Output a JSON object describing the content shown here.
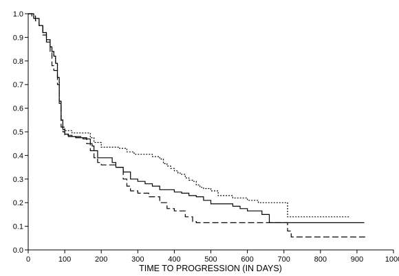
{
  "chart_data": {
    "type": "line",
    "title": "",
    "xlabel": "TIME TO PROGRESSION (IN DAYS)",
    "ylabel": "",
    "xlim": [
      0,
      1000
    ],
    "ylim": [
      0,
      1.0
    ],
    "x_ticks": [
      0,
      100,
      200,
      300,
      400,
      500,
      600,
      700,
      800,
      900,
      1000
    ],
    "y_ticks": [
      0.0,
      0.1,
      0.2,
      0.3,
      0.4,
      0.5,
      0.6,
      0.7,
      0.8,
      0.9,
      1.0
    ],
    "x_tick_labels": [
      "0",
      "100",
      "200",
      "300",
      "400",
      "500",
      "600",
      "700",
      "800",
      "900",
      "1000"
    ],
    "y_tick_labels": [
      "0.0",
      "0.1",
      "0.2",
      "0.3",
      "0.4",
      "0.5",
      "0.6",
      "0.7",
      "0.8",
      "0.9",
      "1.0"
    ],
    "grid": false,
    "legend": "none",
    "step": true,
    "series": [
      {
        "style": "solid",
        "x": [
          0,
          15,
          30,
          40,
          50,
          60,
          65,
          70,
          75,
          80,
          85,
          90,
          95,
          100,
          110,
          130,
          160,
          170,
          175,
          180,
          190,
          230,
          240,
          260,
          280,
          300,
          320,
          340,
          360,
          400,
          420,
          440,
          460,
          480,
          500,
          560,
          580,
          600,
          640,
          660,
          700,
          800,
          920
        ],
        "y": [
          1.0,
          0.98,
          0.95,
          0.92,
          0.89,
          0.86,
          0.84,
          0.82,
          0.79,
          0.73,
          0.63,
          0.55,
          0.51,
          0.49,
          0.48,
          0.475,
          0.47,
          0.45,
          0.44,
          0.42,
          0.39,
          0.37,
          0.35,
          0.33,
          0.3,
          0.29,
          0.28,
          0.27,
          0.255,
          0.245,
          0.24,
          0.23,
          0.225,
          0.21,
          0.195,
          0.185,
          0.175,
          0.165,
          0.15,
          0.115,
          0.115,
          0.115,
          0.115
        ]
      },
      {
        "style": "dotted",
        "x": [
          0,
          15,
          30,
          40,
          50,
          60,
          65,
          70,
          75,
          80,
          85,
          90,
          95,
          100,
          120,
          170,
          180,
          200,
          250,
          270,
          290,
          340,
          360,
          370,
          380,
          390,
          400,
          410,
          420,
          430,
          440,
          450,
          460,
          470,
          480,
          500,
          520,
          560,
          600,
          630,
          650,
          710,
          780,
          880
        ],
        "y": [
          1.0,
          0.98,
          0.95,
          0.92,
          0.89,
          0.86,
          0.84,
          0.82,
          0.79,
          0.73,
          0.63,
          0.55,
          0.52,
          0.505,
          0.495,
          0.475,
          0.455,
          0.435,
          0.43,
          0.415,
          0.405,
          0.395,
          0.385,
          0.365,
          0.355,
          0.345,
          0.335,
          0.325,
          0.32,
          0.305,
          0.295,
          0.29,
          0.275,
          0.265,
          0.26,
          0.25,
          0.23,
          0.22,
          0.21,
          0.2,
          0.2,
          0.14,
          0.14,
          0.14
        ]
      },
      {
        "style": "dashed",
        "x": [
          0,
          10,
          20,
          30,
          40,
          50,
          60,
          65,
          70,
          80,
          85,
          90,
          95,
          100,
          120,
          150,
          160,
          170,
          180,
          190,
          200,
          240,
          260,
          270,
          280,
          300,
          330,
          360,
          380,
          400,
          430,
          450,
          460,
          470,
          500,
          620,
          700,
          710,
          720,
          800,
          930
        ],
        "y": [
          1.0,
          0.99,
          0.97,
          0.95,
          0.91,
          0.88,
          0.84,
          0.78,
          0.76,
          0.7,
          0.62,
          0.52,
          0.5,
          0.485,
          0.48,
          0.47,
          0.45,
          0.42,
          0.39,
          0.37,
          0.36,
          0.35,
          0.3,
          0.27,
          0.25,
          0.24,
          0.225,
          0.2,
          0.175,
          0.165,
          0.14,
          0.12,
          0.115,
          0.115,
          0.115,
          0.115,
          0.115,
          0.08,
          0.055,
          0.055,
          0.055
        ]
      }
    ]
  }
}
